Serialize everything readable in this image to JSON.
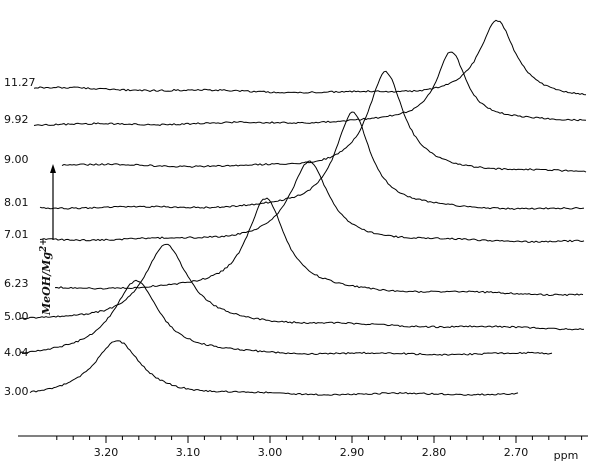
{
  "chart_data": {
    "type": "line",
    "title": "",
    "xlabel": "ppm",
    "ylabel": "MeOH/Mg2+",
    "xlim": [
      3.28,
      2.62
    ],
    "x_reversed": true,
    "xticks": [
      "3.20",
      "3.10",
      "3.00",
      "2.90",
      "2.80",
      "2.70"
    ],
    "tick_values": [
      3.2,
      3.1,
      3.0,
      2.9,
      2.8,
      2.7
    ],
    "series": [
      {
        "name": "3.00",
        "peak_ppm": 3.186,
        "peak_height": 0.72,
        "width_ppm": 0.034
      },
      {
        "name": "4.04",
        "peak_ppm": 3.163,
        "peak_height": 1.0,
        "width_ppm": 0.034
      },
      {
        "name": "5.00",
        "peak_ppm": 3.127,
        "peak_height": 1.05,
        "width_ppm": 0.032
      },
      {
        "name": "6.23",
        "peak_ppm": 3.005,
        "peak_height": 1.25,
        "width_ppm": 0.028
      },
      {
        "name": "7.01",
        "peak_ppm": 2.952,
        "peak_height": 1.05,
        "width_ppm": 0.028
      },
      {
        "name": "8.01",
        "peak_ppm": 2.899,
        "peak_height": 1.3,
        "width_ppm": 0.026
      },
      {
        "name": "9.00",
        "peak_ppm": 2.859,
        "peak_height": 1.3,
        "width_ppm": 0.026
      },
      {
        "name": "9.92",
        "peak_ppm": 2.779,
        "peak_height": 0.95,
        "width_ppm": 0.022
      },
      {
        "name": "11.27",
        "peak_ppm": 2.723,
        "peak_height": 1.0,
        "width_ppm": 0.026
      }
    ]
  }
}
